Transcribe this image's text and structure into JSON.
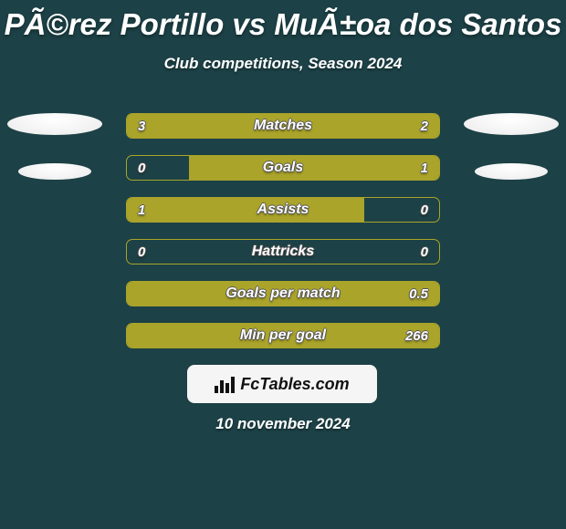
{
  "background_color": "#1c4146",
  "accent_color": "#aaa42a",
  "title_color": "#ffffff",
  "title": "PÃ©rez Portillo vs MuÃ±oa dos Santos",
  "subtitle": "Club competitions, Season 2024",
  "date": "10 november 2024",
  "logo_text": "FcTables.com",
  "rows": [
    {
      "label": "Matches",
      "left_val": "3",
      "right_val": "2",
      "left_pct": 60,
      "right_pct": 40
    },
    {
      "label": "Goals",
      "left_val": "0",
      "right_val": "1",
      "left_pct": 0,
      "right_pct": 80
    },
    {
      "label": "Assists",
      "left_val": "1",
      "right_val": "0",
      "left_pct": 76,
      "right_pct": 0
    },
    {
      "label": "Hattricks",
      "left_val": "0",
      "right_val": "0",
      "left_pct": 0,
      "right_pct": 0
    },
    {
      "label": "Goals per match",
      "left_val": "",
      "right_val": "0.5",
      "left_pct": 0,
      "right_pct": 100
    },
    {
      "label": "Min per goal",
      "left_val": "",
      "right_val": "266",
      "left_pct": 0,
      "right_pct": 100
    }
  ]
}
